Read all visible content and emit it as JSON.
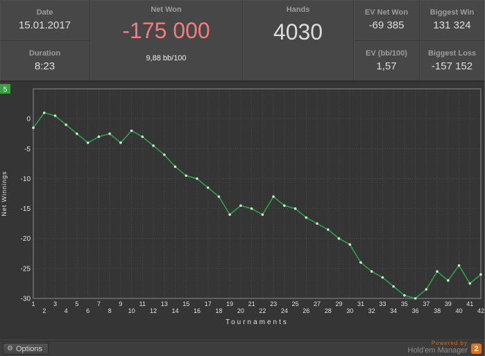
{
  "header": {
    "date": {
      "label": "Date",
      "value": "15.01.2017"
    },
    "duration": {
      "label": "Duration",
      "value": "8:23"
    },
    "net_won": {
      "label": "Net Won",
      "value": "-175 000",
      "sub": "9,88 bb/100"
    },
    "hands": {
      "label": "Hands",
      "value": "4030"
    },
    "ev_net_won": {
      "label": "EV Net Won",
      "value": "-69 385"
    },
    "ev_bb100": {
      "label": "EV (bb/100)",
      "value": "1,57"
    },
    "biggest_win": {
      "label": "Biggest Win",
      "value": "131 324"
    },
    "biggest_loss": {
      "label": "Biggest Loss",
      "value": "-157 152"
    }
  },
  "chart_data": {
    "type": "line",
    "x": [
      1,
      2,
      3,
      4,
      5,
      6,
      7,
      8,
      9,
      10,
      11,
      12,
      13,
      14,
      15,
      16,
      17,
      18,
      19,
      20,
      21,
      22,
      23,
      24,
      25,
      26,
      27,
      28,
      29,
      30,
      31,
      32,
      33,
      34,
      35,
      36,
      37,
      38,
      39,
      40,
      41,
      42
    ],
    "values": [
      -1.5,
      1,
      0.5,
      -1,
      -2.5,
      -4,
      -3,
      -2.5,
      -4,
      -2,
      -3,
      -4.5,
      -6,
      -8,
      -9.5,
      -10,
      -11.5,
      -13,
      -16,
      -14.5,
      -15,
      -16,
      -13,
      -14.5,
      -15,
      -16.5,
      -17.5,
      -18.5,
      -20,
      -21,
      -24,
      -25.5,
      -26.5,
      -28,
      -29.5,
      -30,
      -28.5,
      -25.5,
      -27,
      -24.5,
      -27.5,
      -26
    ],
    "title": "",
    "xlabel": "Tournaments",
    "ylabel": "Net Winnings",
    "ylim": [
      -30,
      5
    ],
    "yticks": [
      5,
      0,
      -5,
      -10,
      -15,
      -20,
      -25,
      -30
    ],
    "highlight_ytick": 5,
    "grid": true,
    "legend": "none",
    "line_color": "#2fa04c",
    "marker_color": "#c8eecb"
  },
  "footer": {
    "options_label": "Options",
    "powered_by": "Powered by",
    "brand": "Hold'em Manager",
    "badge": "2"
  },
  "colors": {
    "net_won": "#ef7f7f",
    "ytick_highlight": "#3f9b45",
    "badge": "#e2701d",
    "grid": "#4a4a4a",
    "axis": "#8a8a8a",
    "tick_text": "#e3e3e3"
  }
}
